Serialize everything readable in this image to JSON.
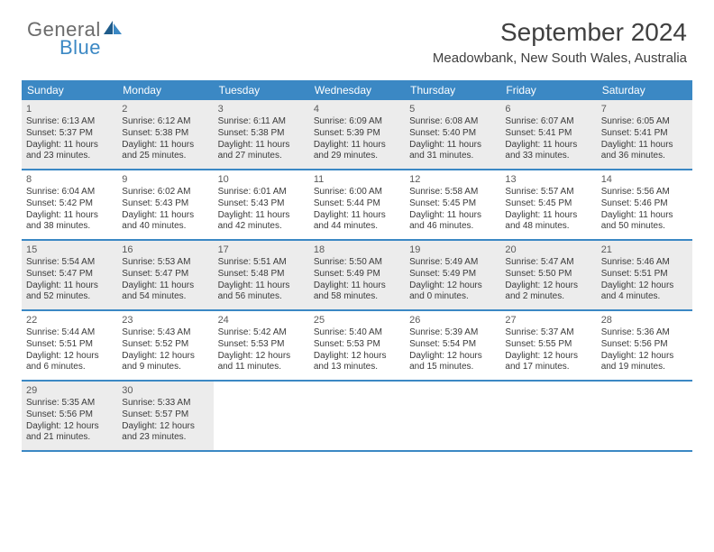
{
  "logo": {
    "general": "General",
    "blue": "Blue"
  },
  "header": {
    "month_title": "September 2024",
    "location": "Meadowbank, New South Wales, Australia"
  },
  "colors": {
    "accent": "#3b88c4",
    "header_text": "#ffffff",
    "body_text": "#3a3a3a",
    "shaded_bg": "#ececec",
    "logo_gray": "#6b6b6b",
    "title_color": "#404040"
  },
  "day_names": [
    "Sunday",
    "Monday",
    "Tuesday",
    "Wednesday",
    "Thursday",
    "Friday",
    "Saturday"
  ],
  "weeks": [
    {
      "shaded": true,
      "days": [
        {
          "num": "1",
          "sunrise": "Sunrise: 6:13 AM",
          "sunset": "Sunset: 5:37 PM",
          "daylight": "Daylight: 11 hours and 23 minutes."
        },
        {
          "num": "2",
          "sunrise": "Sunrise: 6:12 AM",
          "sunset": "Sunset: 5:38 PM",
          "daylight": "Daylight: 11 hours and 25 minutes."
        },
        {
          "num": "3",
          "sunrise": "Sunrise: 6:11 AM",
          "sunset": "Sunset: 5:38 PM",
          "daylight": "Daylight: 11 hours and 27 minutes."
        },
        {
          "num": "4",
          "sunrise": "Sunrise: 6:09 AM",
          "sunset": "Sunset: 5:39 PM",
          "daylight": "Daylight: 11 hours and 29 minutes."
        },
        {
          "num": "5",
          "sunrise": "Sunrise: 6:08 AM",
          "sunset": "Sunset: 5:40 PM",
          "daylight": "Daylight: 11 hours and 31 minutes."
        },
        {
          "num": "6",
          "sunrise": "Sunrise: 6:07 AM",
          "sunset": "Sunset: 5:41 PM",
          "daylight": "Daylight: 11 hours and 33 minutes."
        },
        {
          "num": "7",
          "sunrise": "Sunrise: 6:05 AM",
          "sunset": "Sunset: 5:41 PM",
          "daylight": "Daylight: 11 hours and 36 minutes."
        }
      ]
    },
    {
      "shaded": false,
      "days": [
        {
          "num": "8",
          "sunrise": "Sunrise: 6:04 AM",
          "sunset": "Sunset: 5:42 PM",
          "daylight": "Daylight: 11 hours and 38 minutes."
        },
        {
          "num": "9",
          "sunrise": "Sunrise: 6:02 AM",
          "sunset": "Sunset: 5:43 PM",
          "daylight": "Daylight: 11 hours and 40 minutes."
        },
        {
          "num": "10",
          "sunrise": "Sunrise: 6:01 AM",
          "sunset": "Sunset: 5:43 PM",
          "daylight": "Daylight: 11 hours and 42 minutes."
        },
        {
          "num": "11",
          "sunrise": "Sunrise: 6:00 AM",
          "sunset": "Sunset: 5:44 PM",
          "daylight": "Daylight: 11 hours and 44 minutes."
        },
        {
          "num": "12",
          "sunrise": "Sunrise: 5:58 AM",
          "sunset": "Sunset: 5:45 PM",
          "daylight": "Daylight: 11 hours and 46 minutes."
        },
        {
          "num": "13",
          "sunrise": "Sunrise: 5:57 AM",
          "sunset": "Sunset: 5:45 PM",
          "daylight": "Daylight: 11 hours and 48 minutes."
        },
        {
          "num": "14",
          "sunrise": "Sunrise: 5:56 AM",
          "sunset": "Sunset: 5:46 PM",
          "daylight": "Daylight: 11 hours and 50 minutes."
        }
      ]
    },
    {
      "shaded": true,
      "days": [
        {
          "num": "15",
          "sunrise": "Sunrise: 5:54 AM",
          "sunset": "Sunset: 5:47 PM",
          "daylight": "Daylight: 11 hours and 52 minutes."
        },
        {
          "num": "16",
          "sunrise": "Sunrise: 5:53 AM",
          "sunset": "Sunset: 5:47 PM",
          "daylight": "Daylight: 11 hours and 54 minutes."
        },
        {
          "num": "17",
          "sunrise": "Sunrise: 5:51 AM",
          "sunset": "Sunset: 5:48 PM",
          "daylight": "Daylight: 11 hours and 56 minutes."
        },
        {
          "num": "18",
          "sunrise": "Sunrise: 5:50 AM",
          "sunset": "Sunset: 5:49 PM",
          "daylight": "Daylight: 11 hours and 58 minutes."
        },
        {
          "num": "19",
          "sunrise": "Sunrise: 5:49 AM",
          "sunset": "Sunset: 5:49 PM",
          "daylight": "Daylight: 12 hours and 0 minutes."
        },
        {
          "num": "20",
          "sunrise": "Sunrise: 5:47 AM",
          "sunset": "Sunset: 5:50 PM",
          "daylight": "Daylight: 12 hours and 2 minutes."
        },
        {
          "num": "21",
          "sunrise": "Sunrise: 5:46 AM",
          "sunset": "Sunset: 5:51 PM",
          "daylight": "Daylight: 12 hours and 4 minutes."
        }
      ]
    },
    {
      "shaded": false,
      "days": [
        {
          "num": "22",
          "sunrise": "Sunrise: 5:44 AM",
          "sunset": "Sunset: 5:51 PM",
          "daylight": "Daylight: 12 hours and 6 minutes."
        },
        {
          "num": "23",
          "sunrise": "Sunrise: 5:43 AM",
          "sunset": "Sunset: 5:52 PM",
          "daylight": "Daylight: 12 hours and 9 minutes."
        },
        {
          "num": "24",
          "sunrise": "Sunrise: 5:42 AM",
          "sunset": "Sunset: 5:53 PM",
          "daylight": "Daylight: 12 hours and 11 minutes."
        },
        {
          "num": "25",
          "sunrise": "Sunrise: 5:40 AM",
          "sunset": "Sunset: 5:53 PM",
          "daylight": "Daylight: 12 hours and 13 minutes."
        },
        {
          "num": "26",
          "sunrise": "Sunrise: 5:39 AM",
          "sunset": "Sunset: 5:54 PM",
          "daylight": "Daylight: 12 hours and 15 minutes."
        },
        {
          "num": "27",
          "sunrise": "Sunrise: 5:37 AM",
          "sunset": "Sunset: 5:55 PM",
          "daylight": "Daylight: 12 hours and 17 minutes."
        },
        {
          "num": "28",
          "sunrise": "Sunrise: 5:36 AM",
          "sunset": "Sunset: 5:56 PM",
          "daylight": "Daylight: 12 hours and 19 minutes."
        }
      ]
    },
    {
      "shaded": true,
      "days": [
        {
          "num": "29",
          "sunrise": "Sunrise: 5:35 AM",
          "sunset": "Sunset: 5:56 PM",
          "daylight": "Daylight: 12 hours and 21 minutes."
        },
        {
          "num": "30",
          "sunrise": "Sunrise: 5:33 AM",
          "sunset": "Sunset: 5:57 PM",
          "daylight": "Daylight: 12 hours and 23 minutes."
        },
        {
          "empty": true
        },
        {
          "empty": true
        },
        {
          "empty": true
        },
        {
          "empty": true
        },
        {
          "empty": true
        }
      ]
    }
  ]
}
